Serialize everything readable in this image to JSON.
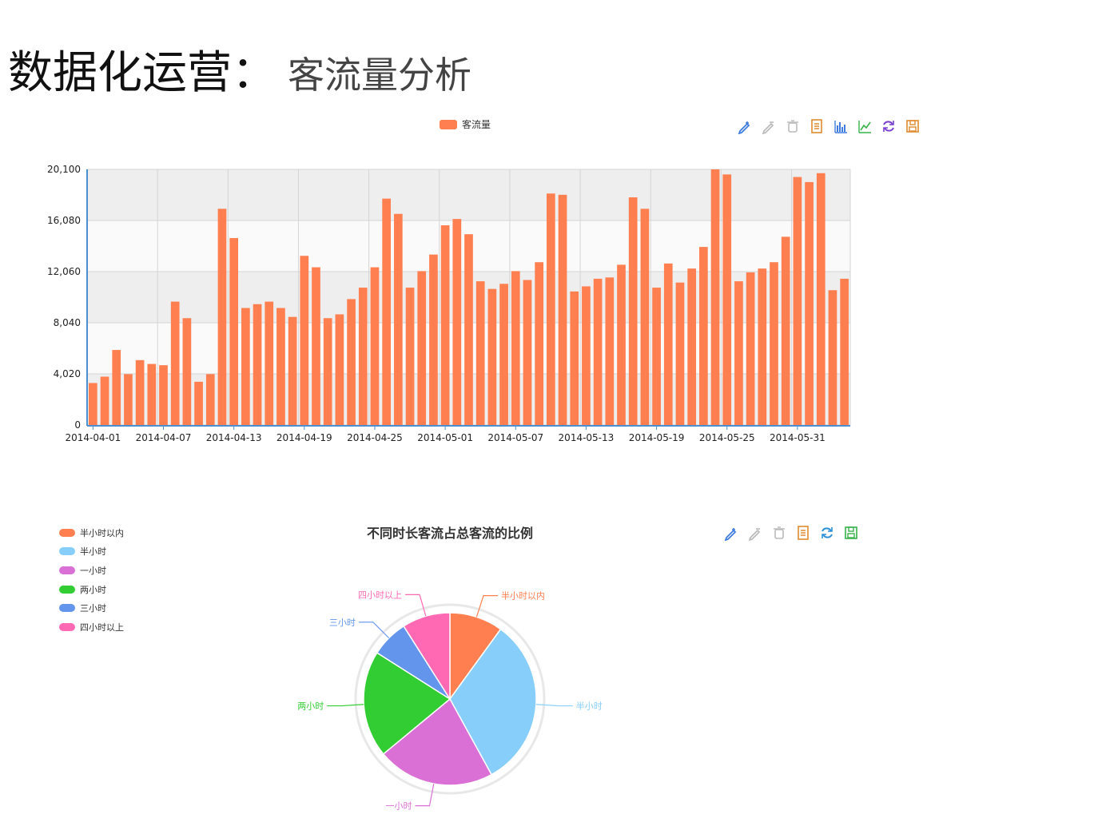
{
  "slide": {
    "title_main": "数据化运营：",
    "title_sub": "客流量分析"
  },
  "icons": {
    "chart1": [
      "pencil-mark-icon",
      "pencil-erase-icon",
      "trash-icon",
      "data-view-icon",
      "bar-chart-icon",
      "line-chart-icon",
      "refresh-icon",
      "save-icon"
    ],
    "chart2": [
      "pencil-mark-icon",
      "pencil-erase-icon",
      "trash-icon",
      "data-view-icon",
      "refresh-icon",
      "save-icon"
    ]
  },
  "chart_data": [
    {
      "type": "bar",
      "legend": [
        "客流量"
      ],
      "legend_position": "top-center",
      "grid": true,
      "series": [
        {
          "name": "客流量",
          "color": "#ff7f50",
          "values": [
            3300,
            3800,
            5900,
            4000,
            5100,
            4800,
            4700,
            9700,
            8400,
            3400,
            4000,
            17000,
            14700,
            9200,
            9500,
            9700,
            9200,
            8500,
            13300,
            12400,
            8400,
            8700,
            9900,
            10800,
            12400,
            17800,
            16600,
            10800,
            12100,
            13400,
            15700,
            16200,
            15000,
            11300,
            10700,
            11100,
            12100,
            11400,
            12800,
            18200,
            18100,
            10500,
            10900,
            11500,
            11600,
            12600,
            17900,
            17000,
            10800,
            12700,
            11200,
            12300,
            14000,
            20100,
            19700,
            11300,
            12000,
            12300,
            12800,
            14800,
            19500,
            19100,
            19800,
            10600,
            11500
          ]
        }
      ],
      "categories_start": "2014-04-01",
      "categories_end": "2014-06-04",
      "x_tick_labels": [
        "2014-04-01",
        "2014-04-07",
        "2014-04-13",
        "2014-04-19",
        "2014-04-25",
        "2014-05-01",
        "2014-05-07",
        "2014-05-13",
        "2014-05-19",
        "2014-05-25",
        "2014-05-31"
      ],
      "y_tick_labels": [
        "0",
        "4,020",
        "8,040",
        "12,060",
        "16,080",
        "20,100"
      ],
      "ylim": [
        0,
        20100
      ]
    },
    {
      "type": "pie",
      "title": "不同时长客流占总客流的比例",
      "legend_position": "left",
      "slices": [
        {
          "label": "半小时以内",
          "value": 10,
          "color": "#ff7f50"
        },
        {
          "label": "半小时",
          "value": 32,
          "color": "#87cefa"
        },
        {
          "label": "一小时",
          "value": 22,
          "color": "#da70d6"
        },
        {
          "label": "两小时",
          "value": 20,
          "color": "#32cd32"
        },
        {
          "label": "三小时",
          "value": 7,
          "color": "#6495ed"
        },
        {
          "label": "四小时以上",
          "value": 9,
          "color": "#ff69b4"
        }
      ]
    }
  ]
}
